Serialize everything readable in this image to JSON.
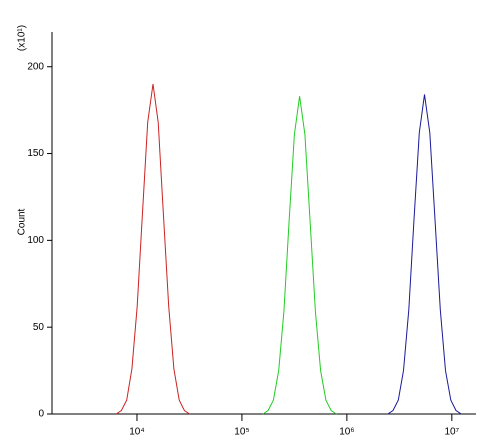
{
  "chart_data": {
    "type": "line",
    "y_label": "Count",
    "y_multiplier": "(x10¹)",
    "log_x": true,
    "xlim": [
      1550,
      17000000
    ],
    "xticks": [
      {
        "value": 10000,
        "label": "10⁴"
      },
      {
        "value": 100000,
        "label": "10⁵"
      },
      {
        "value": 1000000,
        "label": "10⁶"
      },
      {
        "value": 10000000,
        "label": "10⁷"
      }
    ],
    "ylim": [
      0,
      220
    ],
    "yticks": [
      0,
      50,
      100,
      150,
      200
    ],
    "series": [
      {
        "color": "#cc2222",
        "x": [
          6340,
          7110,
          7980,
          8950,
          10050,
          11270,
          12650,
          14200,
          15920,
          17870,
          20040,
          22490,
          25230,
          28310,
          31770
        ],
        "values": [
          0,
          2,
          8,
          26,
          62,
          115,
          168,
          190,
          168,
          115,
          62,
          26,
          8,
          2,
          0
        ]
      },
      {
        "color": "#22cc22",
        "x": [
          158500,
          177800,
          199500,
          223900,
          251200,
          281800,
          316200,
          354800,
          398100,
          446700,
          501200,
          562300,
          631000,
          707900,
          794300
        ],
        "values": [
          0,
          2,
          8,
          25,
          59,
          111,
          161,
          183,
          161,
          111,
          59,
          25,
          8,
          2,
          0
        ]
      },
      {
        "color": "#1a1a99",
        "x": [
          2455000,
          2754000,
          3090000,
          3467000,
          3890000,
          4365000,
          4898000,
          5495000,
          6166000,
          6918000,
          7762000,
          8710000,
          9772000,
          10960000,
          12300000
        ],
        "values": [
          0,
          2,
          8,
          25,
          60,
          112,
          162,
          184,
          162,
          112,
          60,
          25,
          8,
          2,
          0
        ]
      }
    ]
  }
}
